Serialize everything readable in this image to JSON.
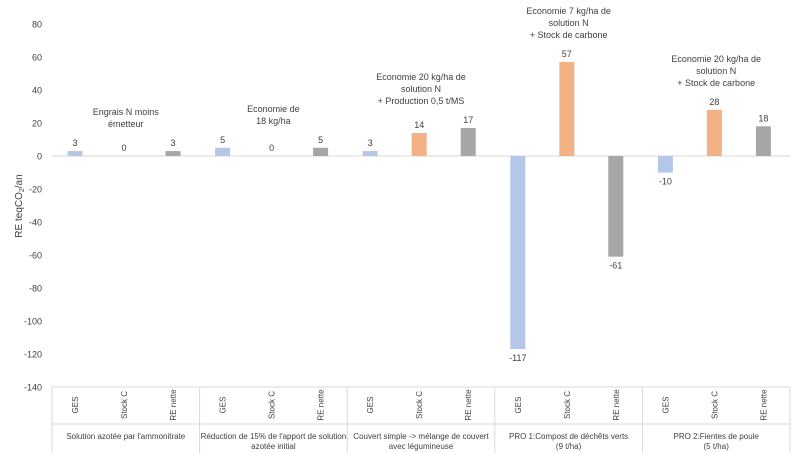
{
  "chart_data": {
    "type": "bar",
    "ylabel": "RE teqCO2/an",
    "ylim": [
      -140,
      80
    ],
    "yticks": [
      -140,
      -120,
      -100,
      -80,
      -60,
      -40,
      -20,
      0,
      20,
      40,
      60,
      80
    ],
    "grid": false,
    "legend": "none",
    "series_colors": {
      "GES": "#b4c7e7",
      "Stock C": "#f4b183",
      "RE nette": "#a6a6a6"
    },
    "groups": [
      {
        "label": [
          "Solution azotée par l'ammonitrate"
        ],
        "annotation": [
          "Engrais N moins",
          "émetteur"
        ],
        "bars": [
          {
            "category": "GES",
            "value": 3,
            "label": "3"
          },
          {
            "category": "Stock C",
            "value": 0,
            "label": "0"
          },
          {
            "category": "RE nette",
            "value": 3,
            "label": "3"
          }
        ]
      },
      {
        "label": [
          "Réduction de 15% de l'apport de solution",
          "azotée initial"
        ],
        "annotation": [
          "Economie de",
          "18 kg/ha"
        ],
        "bars": [
          {
            "category": "GES",
            "value": 5,
            "label": "5"
          },
          {
            "category": "Stock C",
            "value": 0,
            "label": "0"
          },
          {
            "category": "RE nette",
            "value": 5,
            "label": "5"
          }
        ]
      },
      {
        "label": [
          "Couvert simple -> mélange de couvert",
          "avec légumineuse"
        ],
        "annotation": [
          "Economie 20 kg/ha de",
          "solution N",
          "+ Production 0,5 t/MS"
        ],
        "bars": [
          {
            "category": "GES",
            "value": 3,
            "label": "3"
          },
          {
            "category": "Stock C",
            "value": 14,
            "label": "14"
          },
          {
            "category": "RE nette",
            "value": 17,
            "label": "17"
          }
        ]
      },
      {
        "label": [
          "PRO 1:Compost de déchêts verts",
          "(9  t/ha)"
        ],
        "annotation": [
          "Economie 7 kg/ha de",
          "solution N",
          "+ Stock de carbone"
        ],
        "bars": [
          {
            "category": "GES",
            "value": -117,
            "label": "-117"
          },
          {
            "category": "Stock C",
            "value": 57,
            "label": "57"
          },
          {
            "category": "RE nette",
            "value": -61,
            "label": "-61"
          }
        ]
      },
      {
        "label": [
          "PRO 2:Fientes de poule",
          "(5 t/ha)"
        ],
        "annotation": [
          "Economie 20 kg/ha de",
          "solution N",
          "+ Stock de carbone"
        ],
        "bars": [
          {
            "category": "GES",
            "value": -10,
            "label": "-10"
          },
          {
            "category": "Stock C",
            "value": 28,
            "label": "28"
          },
          {
            "category": "RE nette",
            "value": 18,
            "label": "18"
          }
        ]
      }
    ]
  }
}
